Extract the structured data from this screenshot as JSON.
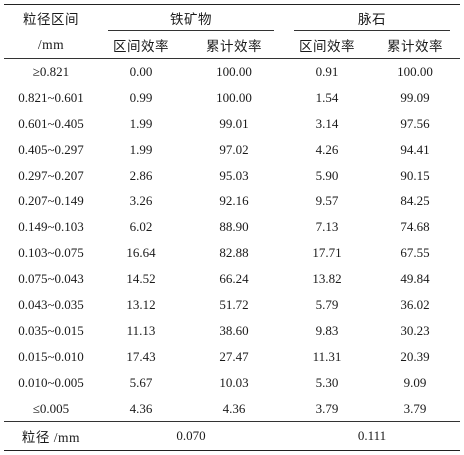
{
  "header": {
    "size_label": "粒径区间",
    "size_unit": "/mm",
    "group1": "铁矿物",
    "group2": "脉石",
    "sub_interval": "区间效率",
    "sub_cumulative": "累计效率"
  },
  "rows": [
    {
      "range": "≥0.821",
      "iron_interval": "0.00",
      "iron_cum": "100.00",
      "gangue_interval": "0.91",
      "gangue_cum": "100.00"
    },
    {
      "range": "0.821~0.601",
      "iron_interval": "0.99",
      "iron_cum": "100.00",
      "gangue_interval": "1.54",
      "gangue_cum": "99.09"
    },
    {
      "range": "0.601~0.405",
      "iron_interval": "1.99",
      "iron_cum": "99.01",
      "gangue_interval": "3.14",
      "gangue_cum": "97.56"
    },
    {
      "range": "0.405~0.297",
      "iron_interval": "1.99",
      "iron_cum": "97.02",
      "gangue_interval": "4.26",
      "gangue_cum": "94.41"
    },
    {
      "range": "0.297~0.207",
      "iron_interval": "2.86",
      "iron_cum": "95.03",
      "gangue_interval": "5.90",
      "gangue_cum": "90.15"
    },
    {
      "range": "0.207~0.149",
      "iron_interval": "3.26",
      "iron_cum": "92.16",
      "gangue_interval": "9.57",
      "gangue_cum": "84.25"
    },
    {
      "range": "0.149~0.103",
      "iron_interval": "6.02",
      "iron_cum": "88.90",
      "gangue_interval": "7.13",
      "gangue_cum": "74.68"
    },
    {
      "range": "0.103~0.075",
      "iron_interval": "16.64",
      "iron_cum": "82.88",
      "gangue_interval": "17.71",
      "gangue_cum": "67.55"
    },
    {
      "range": "0.075~0.043",
      "iron_interval": "14.52",
      "iron_cum": "66.24",
      "gangue_interval": "13.82",
      "gangue_cum": "49.84"
    },
    {
      "range": "0.043~0.035",
      "iron_interval": "13.12",
      "iron_cum": "51.72",
      "gangue_interval": "5.79",
      "gangue_cum": "36.02"
    },
    {
      "range": "0.035~0.015",
      "iron_interval": "11.13",
      "iron_cum": "38.60",
      "gangue_interval": "9.83",
      "gangue_cum": "30.23"
    },
    {
      "range": "0.015~0.010",
      "iron_interval": "17.43",
      "iron_cum": "27.47",
      "gangue_interval": "11.31",
      "gangue_cum": "20.39"
    },
    {
      "range": "0.010~0.005",
      "iron_interval": "5.67",
      "iron_cum": "10.03",
      "gangue_interval": "5.30",
      "gangue_cum": "9.09"
    },
    {
      "range": "≤0.005",
      "iron_interval": "4.36",
      "iron_cum": "4.36",
      "gangue_interval": "3.79",
      "gangue_cum": "3.79"
    }
  ],
  "footer": {
    "label": "粒径 /mm",
    "iron_value": "0.070",
    "gangue_value": "0.111"
  }
}
